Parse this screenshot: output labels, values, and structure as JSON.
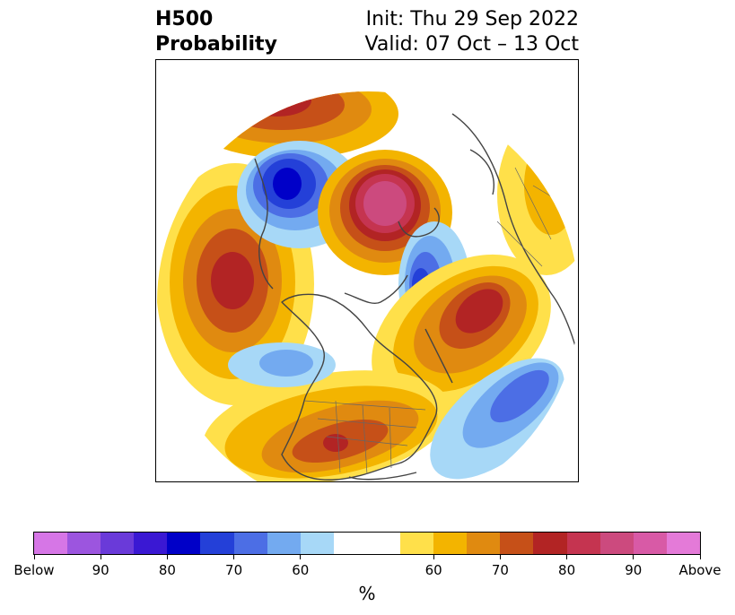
{
  "header": {
    "title_line1": "H500",
    "title_line2": "Probability",
    "init_text": "Init: Thu 29 Sep 2022",
    "valid_text": "Valid: 07 Oct – 13 Oct"
  },
  "colorbar": {
    "unit": "%",
    "colors": [
      "#d676e6",
      "#9c55df",
      "#6a3ad9",
      "#3a18d3",
      "#0000c8",
      "#2440d8",
      "#4c6ee5",
      "#73aaf0",
      "#a7d8f7",
      "#ffffff",
      "#ffe04a",
      "#f3b400",
      "#e08a10",
      "#c65018",
      "#b22424",
      "#c53450",
      "#cc4a7e",
      "#d85aa6",
      "#e47ad8"
    ],
    "tick_labels": [
      "Below",
      "90",
      "80",
      "70",
      "60",
      "60",
      "70",
      "80",
      "90",
      "Above"
    ]
  },
  "map": {
    "anomalies": [
      {
        "sign": "above",
        "peak_percent": 90,
        "region": "Barents / Kara Sea"
      },
      {
        "sign": "below",
        "peak_percent": 80,
        "region": "East Siberian Sea / Alaska Arctic"
      },
      {
        "sign": "above",
        "peak_percent": 80,
        "region": "North Pacific"
      },
      {
        "sign": "above",
        "peak_percent": 80,
        "region": "North Atlantic / Greenland Sea"
      },
      {
        "sign": "below",
        "peak_percent": 70,
        "region": "Scandinavia / Northern Europe"
      },
      {
        "sign": "above",
        "peak_percent": 80,
        "region": "Central United States"
      },
      {
        "sign": "below",
        "peak_percent": 70,
        "region": "Western Atlantic"
      }
    ]
  }
}
